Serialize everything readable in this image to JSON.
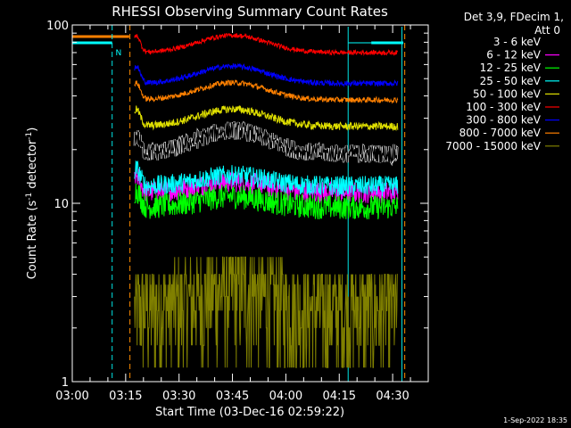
{
  "chart_data": {
    "type": "line",
    "title": "RHESSI Observing Summary Count Rates",
    "xlabel": "Start Time (03-Dec-16 02:59:22)",
    "ylabel_main": "Count Rate (s",
    "ylabel_sup1": "-1",
    "ylabel_mid": " detector",
    "ylabel_sup2": "-1",
    "ylabel_end": ")",
    "y_scale": "log",
    "ylim": [
      1,
      100
    ],
    "xlim_minutes": [
      0,
      100
    ],
    "x_ticks": [
      {
        "label": "03:00",
        "minutes": 0
      },
      {
        "label": "03:15",
        "minutes": 15
      },
      {
        "label": "03:30",
        "minutes": 30
      },
      {
        "label": "03:45",
        "minutes": 45
      },
      {
        "label": "04:00",
        "minutes": 60
      },
      {
        "label": "04:15",
        "minutes": 75
      },
      {
        "label": "04:30",
        "minutes": 90
      }
    ],
    "y_ticks": [
      {
        "label": "100",
        "value": 100
      },
      {
        "label": "10",
        "value": 10
      },
      {
        "label": "1",
        "value": 1
      }
    ],
    "legend_header": [
      "Det 3,9, FDecim 1,",
      "Att 0"
    ],
    "legend_position": "right",
    "flag_marker": "N",
    "vertical_markers": [
      {
        "minutes": 11.2,
        "color": "#00e5e5",
        "style": "dashed"
      },
      {
        "minutes": 16.2,
        "color": "#ff8c00",
        "style": "dashed"
      },
      {
        "minutes": 93.4,
        "color": "#ff8c00",
        "style": "dashed"
      },
      {
        "minutes": 92.6,
        "color": "#00e5e5",
        "style": "solid"
      },
      {
        "minutes": 77.5,
        "color": "#00e5e5",
        "style": "solid"
      }
    ],
    "data_start_minutes": 17.5,
    "data_end_minutes": 91.5,
    "series": [
      {
        "name": "3 - 6 keV",
        "color": "#000000",
        "level": 19,
        "bump": 1.35,
        "noise": 0.12
      },
      {
        "name": "6 - 12 keV",
        "color": "#ff00ff",
        "level": 11.5,
        "bump": 1.15,
        "noise": 0.14
      },
      {
        "name": "12 - 25 keV",
        "color": "#00ff00",
        "level": 9.5,
        "bump": 1.15,
        "noise": 0.16
      },
      {
        "name": "25 - 50 keV",
        "color": "#00ffff",
        "level": 12.5,
        "bump": 1.15,
        "noise": 0.13
      },
      {
        "name": "50 - 100 keV",
        "color": "#e0e000",
        "level": 27,
        "bump": 1.25,
        "noise": 0.05
      },
      {
        "name": "100 - 300 keV",
        "color": "#ff0000",
        "level": 70,
        "bump": 1.25,
        "noise": 0.03
      },
      {
        "name": "300 - 800 keV",
        "color": "#0000ff",
        "level": 47,
        "bump": 1.25,
        "noise": 0.035
      },
      {
        "name": "800 - 7000 keV",
        "color": "#ff8000",
        "level": 38,
        "bump": 1.25,
        "noise": 0.035
      },
      {
        "name": "7000 - 15000 keV",
        "color": "#808000",
        "level": 2.6,
        "bump": 1.3,
        "noise": 0.35
      }
    ]
  },
  "footer": {
    "timestamp": "1-Sep-2022 18:35"
  }
}
